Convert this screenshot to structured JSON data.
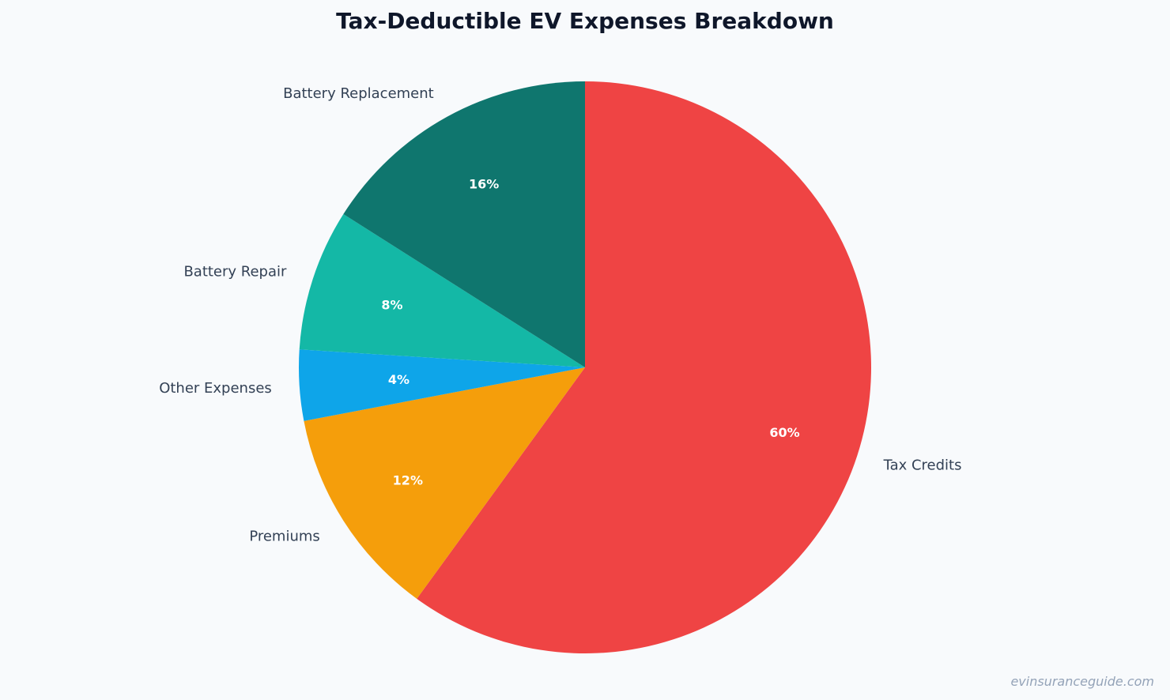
{
  "chart_data": {
    "type": "pie",
    "title": "Tax-Deductible EV Expenses Breakdown",
    "start_angle_deg": 90,
    "direction": "clockwise",
    "slices": [
      {
        "label": "Tax Credits",
        "value": 60,
        "display": "60%",
        "color": "#ef4444"
      },
      {
        "label": "Premiums",
        "value": 12,
        "display": "12%",
        "color": "#f59e0b"
      },
      {
        "label": "Other Expenses",
        "value": 4,
        "display": "4%",
        "color": "#0ea5e9"
      },
      {
        "label": "Battery Repair",
        "value": 8,
        "display": "8%",
        "color": "#14b8a6"
      },
      {
        "label": "Battery Replacement",
        "value": 16,
        "display": "16%",
        "color": "#0f766e"
      }
    ]
  },
  "watermark": "evinsuranceguide.com",
  "colors": {
    "background": "#f8fafc",
    "title": "#0f172a",
    "label_text": "#334155",
    "pct_text": "#ffffff",
    "watermark": "#94a3b8"
  }
}
